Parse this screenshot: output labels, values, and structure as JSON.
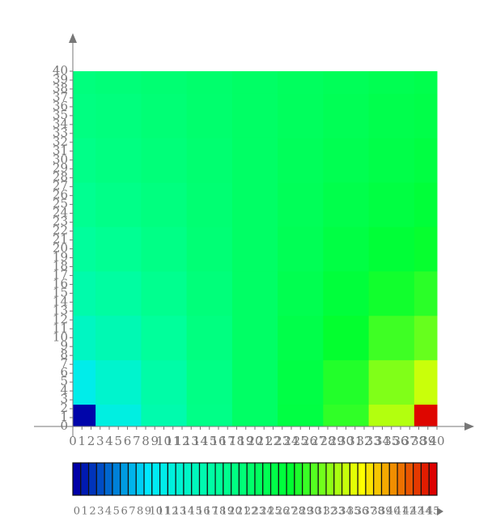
{
  "chart_data": {
    "type": "contour",
    "x": [
      0,
      5,
      10,
      15,
      20,
      25,
      30,
      35,
      40
    ],
    "y": [
      0,
      5,
      10,
      15,
      20,
      25,
      30,
      35,
      40
    ],
    "z": [
      [
        0.2,
        11.7,
        16.3,
        19.6,
        22.5,
        25.4,
        28.7,
        33.3,
        44.8
      ],
      [
        10.9,
        13.5,
        16.8,
        19.8,
        22.5,
        25.2,
        28.2,
        31.5,
        34.1
      ],
      [
        14.4,
        15.8,
        17.9,
        20.2,
        22.5,
        24.8,
        27.1,
        29.2,
        30.6
      ],
      [
        16.5,
        17.4,
        18.9,
        20.7,
        22.5,
        24.3,
        26.1,
        27.6,
        28.5
      ],
      [
        17.8,
        18.6,
        19.7,
        21.1,
        22.5,
        23.9,
        25.3,
        26.4,
        27.2
      ],
      [
        18.8,
        19.5,
        20.3,
        21.4,
        22.5,
        23.6,
        24.7,
        25.5,
        26.2
      ],
      [
        19.5,
        20.1,
        20.8,
        21.6,
        22.5,
        23.4,
        24.2,
        24.9,
        25.5
      ],
      [
        20.1,
        20.5,
        21.1,
        21.8,
        22.5,
        23.2,
        23.9,
        24.5,
        24.9
      ],
      [
        20.5,
        20.9,
        21.4,
        21.9,
        22.5,
        23.1,
        23.6,
        24.1,
        24.5
      ]
    ],
    "xlim": [
      0,
      40
    ],
    "ylim": [
      0,
      40
    ],
    "xticks": [
      0,
      1,
      2,
      3,
      4,
      5,
      6,
      7,
      8,
      9,
      10,
      11,
      12,
      13,
      14,
      15,
      16,
      17,
      18,
      19,
      20,
      21,
      22,
      23,
      24,
      25,
      26,
      27,
      28,
      29,
      30,
      31,
      32,
      33,
      34,
      35,
      36,
      37,
      38,
      39,
      40
    ],
    "yticks": [
      0,
      1,
      2,
      3,
      4,
      5,
      6,
      7,
      8,
      9,
      10,
      11,
      12,
      13,
      14,
      15,
      16,
      17,
      18,
      19,
      20,
      21,
      22,
      23,
      24,
      25,
      26,
      27,
      28,
      29,
      30,
      31,
      32,
      33,
      34,
      35,
      36,
      37,
      38,
      39,
      40
    ],
    "levels": [
      0,
      1,
      2,
      3,
      4,
      5,
      6,
      7,
      8,
      9,
      10,
      11,
      12,
      13,
      14,
      15,
      16,
      17,
      18,
      19,
      20,
      21,
      22,
      23,
      24,
      25,
      26,
      27,
      28,
      29,
      30,
      31,
      32,
      33,
      34,
      35,
      36,
      37,
      38,
      39,
      40,
      41,
      42,
      43,
      44,
      45
    ],
    "colormap": [
      "#0000a8",
      "#00e8ff",
      "#00ff9a",
      "#00ff30",
      "#ffff00",
      "#dd0000"
    ]
  }
}
